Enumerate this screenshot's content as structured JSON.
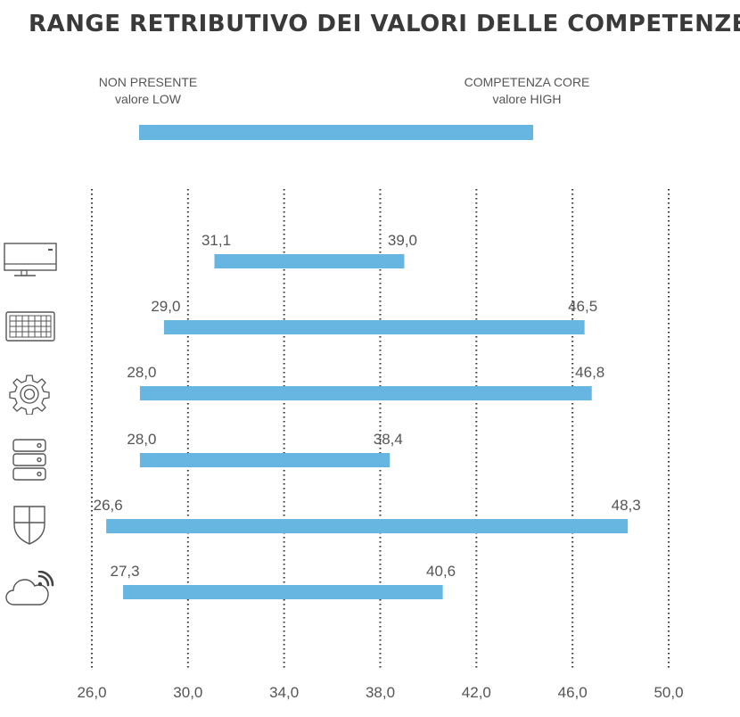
{
  "title": "RANGE RETRIBUTIVO DEI VALORI DELLE COMPETENZE",
  "legend": {
    "low_line1": "NON PRESENTE",
    "low_line2": "valore LOW",
    "high_line1": "COMPETENZA CORE",
    "high_line2": "valore HIGH",
    "bar_color": "#67b6e2"
  },
  "colors": {
    "bar": "#67b6e2",
    "grid": "#333333",
    "label": "#555555"
  },
  "chart_data": {
    "type": "bar",
    "orientation": "horizontal-range",
    "title": "RANGE RETRIBUTIVO DEI VALORI DELLE COMPETENZE",
    "xlim": [
      26,
      50
    ],
    "xticks": [
      "26,0",
      "30,0",
      "34,0",
      "38,0",
      "42,0",
      "46,0",
      "50,0"
    ],
    "xtick_values": [
      26,
      30,
      34,
      38,
      42,
      46,
      50
    ],
    "grid": "vertical-dotted",
    "rows": [
      {
        "icon": "desktop-computer-icon",
        "low": 31.1,
        "high": 39.0,
        "low_label": "31,1",
        "high_label": "39,0"
      },
      {
        "icon": "keyboard-icon",
        "low": 29.0,
        "high": 46.5,
        "low_label": "29,0",
        "high_label": "46,5"
      },
      {
        "icon": "gear-icon",
        "low": 28.0,
        "high": 46.8,
        "low_label": "28,0",
        "high_label": "46,8"
      },
      {
        "icon": "server-stack-icon",
        "low": 28.0,
        "high": 38.4,
        "low_label": "28,0",
        "high_label": "38,4"
      },
      {
        "icon": "shield-icon",
        "low": 26.6,
        "high": 48.3,
        "low_label": "26,6",
        "high_label": "48,3"
      },
      {
        "icon": "cloud-wifi-icon",
        "low": 27.3,
        "high": 40.6,
        "low_label": "27,3",
        "high_label": "40,6"
      }
    ]
  }
}
